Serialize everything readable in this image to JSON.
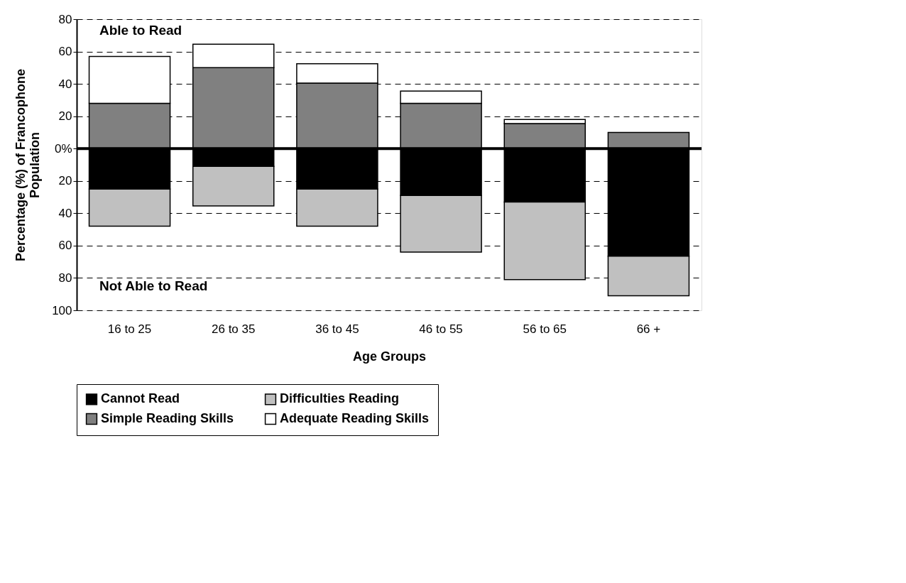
{
  "chart_data": {
    "type": "bar",
    "stacked": true,
    "categories": [
      "16 to 25",
      "26 to 35",
      "36 to 45",
      "46 to 55",
      "56 to 65",
      "66 +"
    ],
    "series": [
      {
        "name": "Cannot Read",
        "color": "#000000",
        "values": [
          -25,
          -11,
          -25,
          -29,
          -33,
          -66.5
        ]
      },
      {
        "name": "Difficulties Reading",
        "color": "#c0c0c0",
        "values": [
          -23,
          -24.5,
          -23,
          -35,
          -48,
          -24.5
        ]
      },
      {
        "name": "Simple Reading Skills",
        "color": "#808080",
        "values": [
          28,
          50,
          40.5,
          28,
          15.5,
          10
        ]
      },
      {
        "name": "Adequate Reading Skills",
        "color": "#ffffff",
        "values": [
          29,
          14.5,
          12,
          7.5,
          2.5,
          null
        ]
      }
    ],
    "xlabel": "Age Groups",
    "ylabel": "Percentage (%) of Francophone\nPopulation",
    "ylim": [
      -100,
      80
    ],
    "yticks": [
      80,
      60,
      40,
      20,
      {
        "value": 0,
        "label": "0%"
      },
      {
        "value": -20,
        "label": "20"
      },
      {
        "value": -40,
        "label": "40"
      },
      {
        "value": -60,
        "label": "60"
      },
      {
        "value": -80,
        "label": "80"
      },
      {
        "value": -100,
        "label": "100"
      }
    ],
    "ref_lines": [
      {
        "axis": "y",
        "value": 0,
        "color": "#000000"
      }
    ],
    "annotations": [
      "Able to Read",
      "Not Able to Read"
    ],
    "grid": "y",
    "legend": "bottom"
  }
}
